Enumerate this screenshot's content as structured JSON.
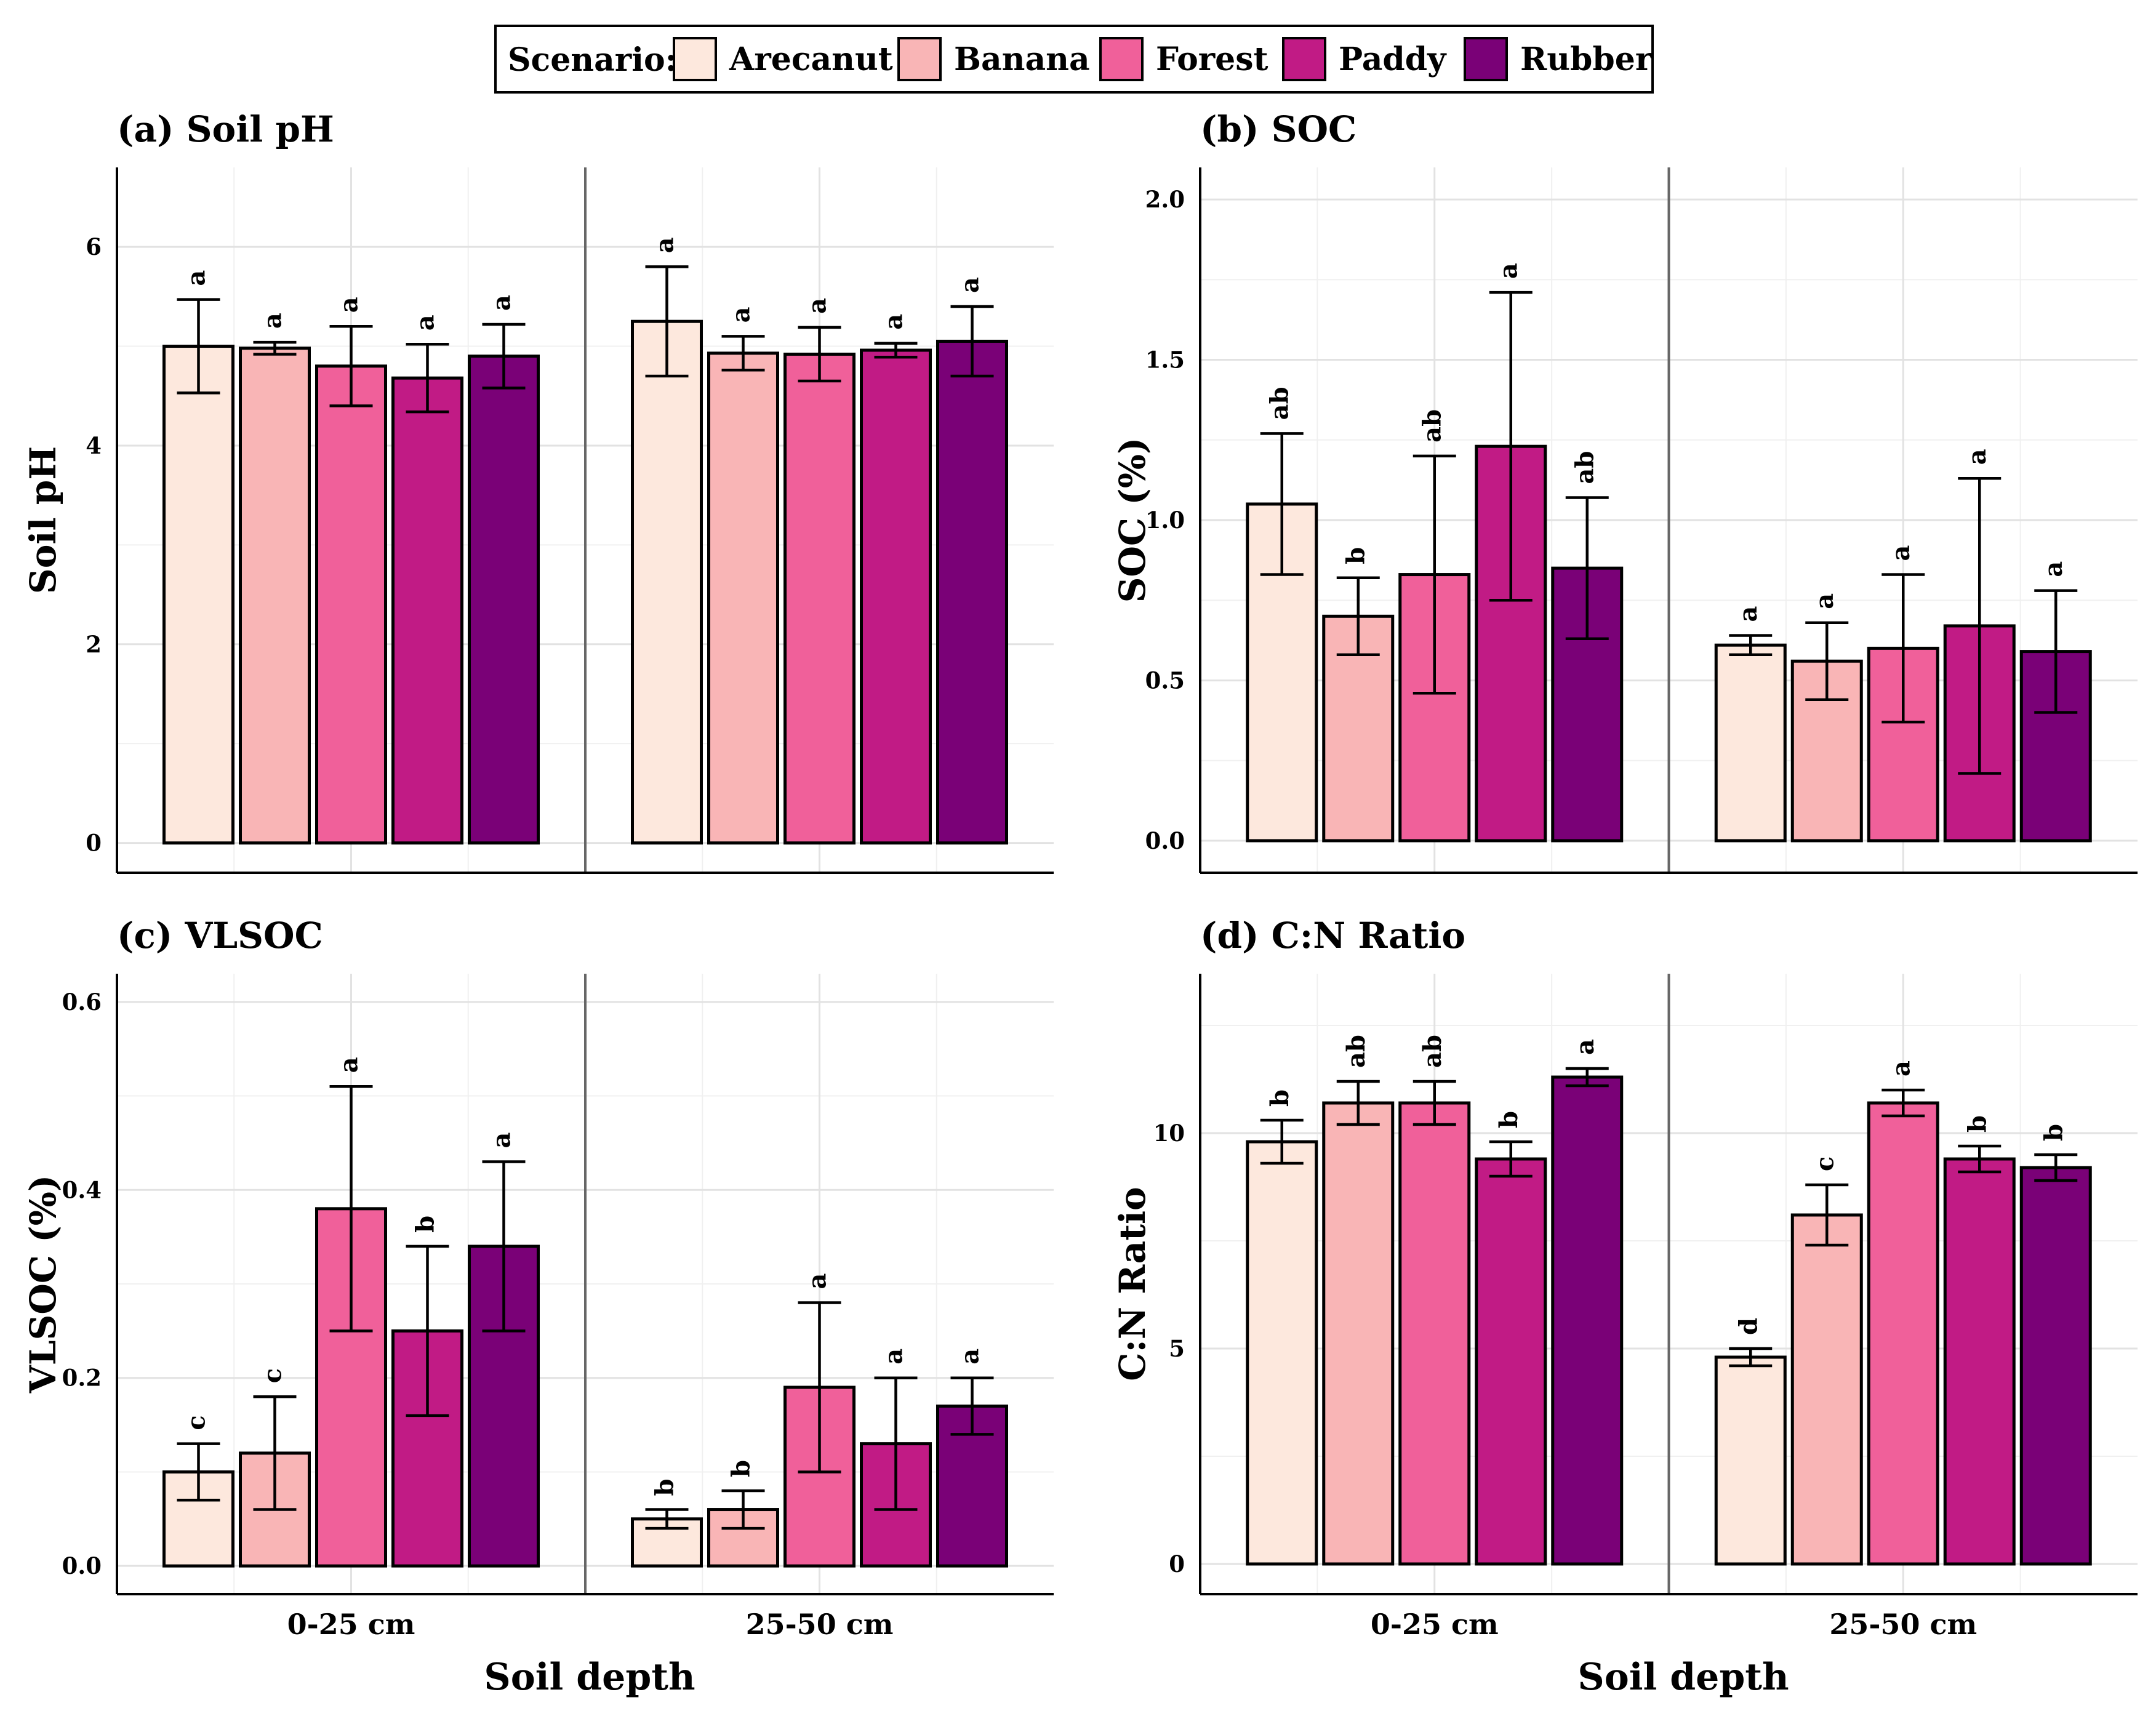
{
  "legend": {
    "title": "Scenario:",
    "entries": [
      {
        "name": "Arecanut",
        "color": "#FDE8DD"
      },
      {
        "name": "Banana",
        "color": "#F9B5B6"
      },
      {
        "name": "Forest",
        "color": "#F0609A"
      },
      {
        "name": "Paddy",
        "color": "#C11B85"
      },
      {
        "name": "Rubber",
        "color": "#7A0177"
      }
    ]
  },
  "xlabel": "Soil depth",
  "facets": [
    "0-25 cm",
    "25-50 cm"
  ],
  "chart_data": [
    {
      "type": "bar",
      "title": "(a) Soil pH",
      "ylabel": "Soil pH",
      "ylim": [
        -0.3,
        6.8
      ],
      "yticks": [
        0,
        2,
        4,
        6
      ],
      "yticklabels": [
        "0",
        "2",
        "4",
        "6"
      ],
      "categories": [
        "Arecanut",
        "Banana",
        "Forest",
        "Paddy",
        "Rubber"
      ],
      "facets": [
        "0-25 cm",
        "25-50 cm"
      ],
      "series": [
        {
          "facet": "0-25 cm",
          "values": [
            5.0,
            4.98,
            4.8,
            4.68,
            4.9
          ],
          "err_low": [
            4.53,
            4.92,
            4.4,
            4.34,
            4.58
          ],
          "err_high": [
            5.47,
            5.04,
            5.2,
            5.02,
            5.22
          ],
          "letters": [
            "a",
            "a",
            "a",
            "a",
            "a"
          ]
        },
        {
          "facet": "25-50 cm",
          "values": [
            5.25,
            4.93,
            4.92,
            4.96,
            5.05
          ],
          "err_low": [
            4.7,
            4.76,
            4.65,
            4.89,
            4.7
          ],
          "err_high": [
            5.8,
            5.1,
            5.19,
            5.03,
            5.4
          ],
          "letters": [
            "a",
            "a",
            "a",
            "a",
            "a"
          ]
        }
      ]
    },
    {
      "type": "bar",
      "title": "(b) SOC",
      "ylabel": "SOC (%)",
      "ylim": [
        -0.1,
        2.1
      ],
      "yticks": [
        0,
        0.5,
        1,
        1.5,
        2
      ],
      "yticklabels": [
        "0.0",
        "0.5",
        "1.0",
        "1.5",
        "2.0"
      ],
      "categories": [
        "Arecanut",
        "Banana",
        "Forest",
        "Paddy",
        "Rubber"
      ],
      "facets": [
        "0-25 cm",
        "25-50 cm"
      ],
      "series": [
        {
          "facet": "0-25 cm",
          "values": [
            1.05,
            0.7,
            0.83,
            1.23,
            0.85
          ],
          "err_low": [
            0.83,
            0.58,
            0.46,
            0.75,
            0.63
          ],
          "err_high": [
            1.27,
            0.82,
            1.2,
            1.71,
            1.07
          ],
          "letters": [
            "ab",
            "b",
            "ab",
            "a",
            "ab"
          ]
        },
        {
          "facet": "25-50 cm",
          "values": [
            0.61,
            0.56,
            0.6,
            0.67,
            0.59
          ],
          "err_low": [
            0.58,
            0.44,
            0.37,
            0.21,
            0.4
          ],
          "err_high": [
            0.64,
            0.68,
            0.83,
            1.13,
            0.78
          ],
          "letters": [
            "a",
            "a",
            "a",
            "a",
            "a"
          ]
        }
      ]
    },
    {
      "type": "bar",
      "title": "(c) VLSOC",
      "ylabel": "VLSOC (%)",
      "ylim": [
        -0.03,
        0.63
      ],
      "yticks": [
        0,
        0.2,
        0.4,
        0.6
      ],
      "yticklabels": [
        "0.0",
        "0.2",
        "0.4",
        "0.6"
      ],
      "categories": [
        "Arecanut",
        "Banana",
        "Forest",
        "Paddy",
        "Rubber"
      ],
      "facets": [
        "0-25 cm",
        "25-50 cm"
      ],
      "series": [
        {
          "facet": "0-25 cm",
          "values": [
            0.1,
            0.12,
            0.38,
            0.25,
            0.34
          ],
          "err_low": [
            0.07,
            0.06,
            0.25,
            0.16,
            0.25
          ],
          "err_high": [
            0.13,
            0.18,
            0.51,
            0.34,
            0.43
          ],
          "letters": [
            "c",
            "c",
            "a",
            "b",
            "a"
          ]
        },
        {
          "facet": "25-50 cm",
          "values": [
            0.05,
            0.06,
            0.19,
            0.13,
            0.17
          ],
          "err_low": [
            0.04,
            0.04,
            0.1,
            0.06,
            0.14
          ],
          "err_high": [
            0.06,
            0.08,
            0.28,
            0.2,
            0.2
          ],
          "letters": [
            "b",
            "b",
            "a",
            "a",
            "a"
          ]
        }
      ]
    },
    {
      "type": "bar",
      "title": "(d) C:N Ratio",
      "ylabel": "C:N Ratio",
      "ylim": [
        -0.7,
        13.7
      ],
      "yticks": [
        0,
        5,
        10
      ],
      "yticklabels": [
        "0",
        "5",
        "10"
      ],
      "categories": [
        "Arecanut",
        "Banana",
        "Forest",
        "Paddy",
        "Rubber"
      ],
      "facets": [
        "0-25 cm",
        "25-50 cm"
      ],
      "series": [
        {
          "facet": "0-25 cm",
          "values": [
            9.8,
            10.7,
            10.7,
            9.4,
            11.3
          ],
          "err_low": [
            9.3,
            10.2,
            10.2,
            9.0,
            11.1
          ],
          "err_high": [
            10.3,
            11.2,
            11.2,
            9.8,
            11.5
          ],
          "letters": [
            "b",
            "ab",
            "ab",
            "b",
            "a"
          ]
        },
        {
          "facet": "25-50 cm",
          "values": [
            4.8,
            8.1,
            10.7,
            9.4,
            9.2
          ],
          "err_low": [
            4.6,
            7.4,
            10.4,
            9.1,
            8.9
          ],
          "err_high": [
            5.0,
            8.8,
            11.0,
            9.7,
            9.5
          ],
          "letters": [
            "d",
            "c",
            "a",
            "b",
            "b"
          ]
        }
      ]
    }
  ]
}
